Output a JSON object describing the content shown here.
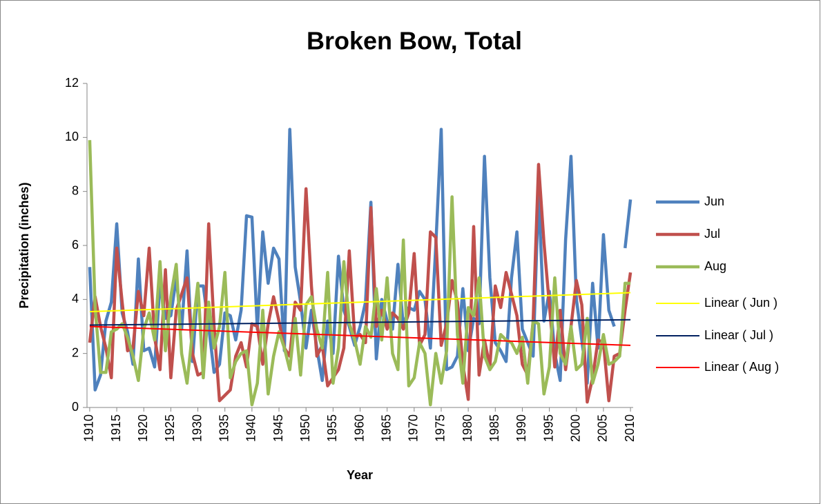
{
  "chart_data": {
    "type": "line",
    "title": "Broken Bow, Total",
    "x_label": "Year",
    "y_label": "Precipitation (inches)",
    "x": [
      1910,
      1911,
      1912,
      1913,
      1914,
      1915,
      1916,
      1917,
      1918,
      1919,
      1920,
      1921,
      1922,
      1923,
      1924,
      1925,
      1926,
      1927,
      1928,
      1929,
      1930,
      1931,
      1932,
      1933,
      1934,
      1935,
      1936,
      1937,
      1938,
      1939,
      1940,
      1941,
      1942,
      1943,
      1944,
      1945,
      1946,
      1947,
      1948,
      1949,
      1950,
      1951,
      1952,
      1953,
      1954,
      1955,
      1956,
      1957,
      1958,
      1959,
      1960,
      1961,
      1962,
      1963,
      1964,
      1965,
      1966,
      1967,
      1968,
      1969,
      1970,
      1971,
      1972,
      1973,
      1974,
      1975,
      1976,
      1977,
      1978,
      1979,
      1980,
      1981,
      1982,
      1983,
      1984,
      1985,
      1986,
      1987,
      1988,
      1989,
      1990,
      1991,
      1992,
      1993,
      1994,
      1995,
      1996,
      1997,
      1998,
      1999,
      2000,
      2001,
      2002,
      2003,
      2004,
      2005,
      2006,
      2007,
      2008,
      2009,
      2010
    ],
    "series": [
      {
        "name": "Jun",
        "color": "#4f81bd",
        "width": 4.5,
        "values": [
          5.2,
          0.65,
          1.2,
          3.2,
          3.9,
          6.8,
          3.5,
          2.8,
          1.6,
          5.5,
          2.1,
          2.2,
          1.5,
          4.6,
          3.3,
          3.4,
          4.8,
          2.9,
          5.8,
          1.7,
          4.5,
          4.5,
          3.0,
          1.3,
          1.6,
          3.5,
          3.4,
          2.5,
          3.6,
          7.1,
          7.05,
          2.9,
          6.5,
          4.6,
          5.9,
          5.5,
          2.1,
          10.3,
          5.2,
          3.9,
          2.2,
          3.6,
          2.2,
          1.0,
          3.2,
          2.0,
          5.6,
          3.6,
          3.0,
          2.3,
          3.0,
          3.9,
          7.6,
          1.8,
          4.0,
          3.2,
          2.9,
          5.3,
          3.0,
          3.7,
          3.6,
          4.3,
          4.0,
          2.2,
          6.0,
          10.3,
          1.4,
          1.5,
          1.9,
          4.4,
          2.1,
          3.3,
          3.1,
          9.3,
          4.8,
          2.4,
          2.1,
          1.7,
          4.8,
          6.5,
          2.9,
          2.4,
          1.9,
          8.0,
          3.2,
          4.3,
          2.0,
          1.0,
          6.2,
          9.3,
          4.0,
          2.5,
          0.9,
          4.6,
          2.2,
          6.4,
          3.6,
          3.0,
          null,
          5.9,
          7.7
        ]
      },
      {
        "name": "Jul",
        "color": "#c0504d",
        "width": 4.5,
        "values": [
          2.4,
          4.1,
          3.0,
          2.2,
          1.1,
          5.9,
          3.9,
          2.1,
          2.2,
          4.3,
          3.4,
          5.9,
          2.6,
          1.4,
          5.1,
          1.1,
          3.6,
          4.2,
          4.8,
          2.0,
          1.2,
          1.3,
          6.8,
          3.0,
          0.25,
          0.45,
          0.65,
          1.9,
          2.4,
          1.5,
          3.1,
          3.0,
          1.6,
          3.1,
          4.1,
          3.2,
          2.2,
          1.9,
          3.9,
          3.6,
          8.1,
          4.5,
          1.9,
          2.3,
          0.8,
          1.1,
          1.4,
          2.2,
          5.8,
          2.6,
          2.7,
          2.4,
          7.4,
          3.0,
          3.6,
          2.9,
          3.5,
          3.3,
          2.9,
          3.5,
          5.7,
          2.3,
          2.7,
          6.5,
          6.3,
          2.3,
          3.1,
          4.7,
          3.9,
          1.6,
          0.3,
          6.7,
          1.2,
          2.5,
          1.5,
          4.5,
          3.7,
          5.0,
          4.2,
          3.4,
          1.6,
          1.2,
          3.2,
          9.0,
          6.1,
          3.8,
          1.5,
          3.6,
          1.4,
          3.0,
          4.7,
          3.8,
          0.2,
          1.1,
          2.5,
          2.4,
          0.25,
          1.9,
          2.0,
          3.6,
          5.0
        ]
      },
      {
        "name": "Aug",
        "color": "#9bbb59",
        "width": 4.5,
        "values": [
          9.9,
          3.7,
          1.3,
          1.3,
          2.8,
          2.9,
          3.1,
          2.6,
          1.9,
          1.0,
          2.9,
          3.5,
          2.5,
          5.4,
          2.1,
          4.1,
          5.3,
          2.0,
          0.9,
          2.8,
          4.6,
          1.1,
          3.9,
          2.2,
          3.0,
          5.0,
          1.1,
          1.7,
          2.0,
          2.1,
          0.1,
          0.9,
          3.6,
          0.5,
          1.9,
          2.8,
          2.2,
          1.4,
          3.3,
          1.2,
          3.8,
          4.1,
          2.9,
          2.2,
          5.0,
          0.9,
          2.2,
          5.4,
          3.1,
          2.5,
          1.6,
          3.0,
          2.6,
          4.4,
          2.5,
          4.8,
          2.0,
          1.4,
          6.2,
          0.8,
          1.1,
          2.4,
          2.0,
          0.1,
          2.0,
          0.9,
          2.1,
          7.8,
          2.7,
          0.9,
          3.7,
          3.4,
          4.8,
          1.9,
          1.4,
          1.7,
          2.7,
          2.5,
          2.4,
          2.0,
          2.6,
          0.9,
          3.2,
          3.1,
          0.5,
          1.5,
          4.8,
          2.0,
          1.6,
          3.0,
          1.4,
          1.6,
          3.3,
          0.9,
          1.6,
          2.7,
          1.6,
          1.7,
          1.9,
          4.6,
          4.6
        ]
      },
      {
        "name": "Linear ( Jun )",
        "color": "#ffff00",
        "width": 2,
        "x": [
          1910,
          2010
        ],
        "values": [
          3.55,
          4.25
        ]
      },
      {
        "name": "Linear ( Jul )",
        "color": "#002060",
        "width": 2,
        "x": [
          1910,
          2010
        ],
        "values": [
          3.05,
          3.25
        ]
      },
      {
        "name": "Linear ( Aug )",
        "color": "#ff0000",
        "width": 2,
        "x": [
          1910,
          2010
        ],
        "values": [
          3.0,
          2.3
        ]
      }
    ],
    "xlim": [
      1909.5,
      2010.5
    ],
    "xticks": [
      1910,
      1915,
      1920,
      1925,
      1930,
      1935,
      1940,
      1945,
      1950,
      1955,
      1960,
      1965,
      1970,
      1975,
      1980,
      1985,
      1990,
      1995,
      2000,
      2005,
      2010
    ],
    "ylim": [
      0,
      12
    ],
    "yticks": [
      0,
      2,
      4,
      6,
      8,
      10,
      12
    ],
    "grid": false,
    "legend": "right"
  }
}
